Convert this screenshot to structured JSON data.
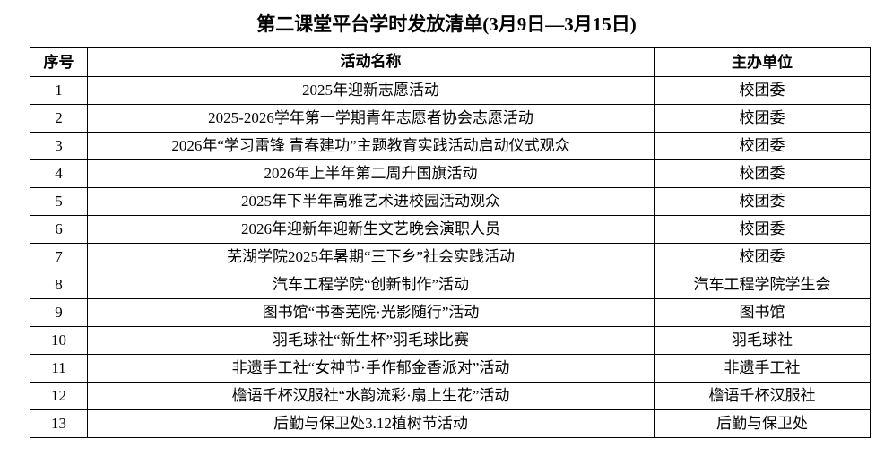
{
  "header": {
    "title": "第二课堂平台学时发放清单(3月9日—3月15日)"
  },
  "table": {
    "columns": [
      "序号",
      "活动名称",
      "主办单位"
    ],
    "rows": [
      [
        "1",
        "2025年迎新志愿活动",
        "校团委"
      ],
      [
        "2",
        "2025-2026学年第一学期青年志愿者协会志愿活动",
        "校团委"
      ],
      [
        "3",
        "2026年“学习雷锋 青春建功”主题教育实践活动启动仪式观众",
        "校团委"
      ],
      [
        "4",
        "2026年上半年第二周升国旗活动",
        "校团委"
      ],
      [
        "5",
        "2025年下半年高雅艺术进校园活动观众",
        "校团委"
      ],
      [
        "6",
        "2026年迎新年迎新生文艺晚会演职人员",
        "校团委"
      ],
      [
        "7",
        "芜湖学院2025年暑期“三下乡”社会实践活动",
        "校团委"
      ],
      [
        "8",
        "汽车工程学院“创新制作”活动",
        "汽车工程学院学生会"
      ],
      [
        "9",
        "图书馆“书香芜院·光影随行”活动",
        "图书馆"
      ],
      [
        "10",
        "羽毛球社“新生杯”羽毛球比赛",
        "羽毛球社"
      ],
      [
        "11",
        "非遗手工社“女神节·手作郁金香派对”活动",
        "非遗手工社"
      ],
      [
        "12",
        "檐语千杯汉服社“水韵流彩·扇上生花”活动",
        "檐语千杯汉服社"
      ],
      [
        "13",
        "后勤与保卫处3.12植树节活动",
        "后勤与保卫处"
      ]
    ]
  }
}
